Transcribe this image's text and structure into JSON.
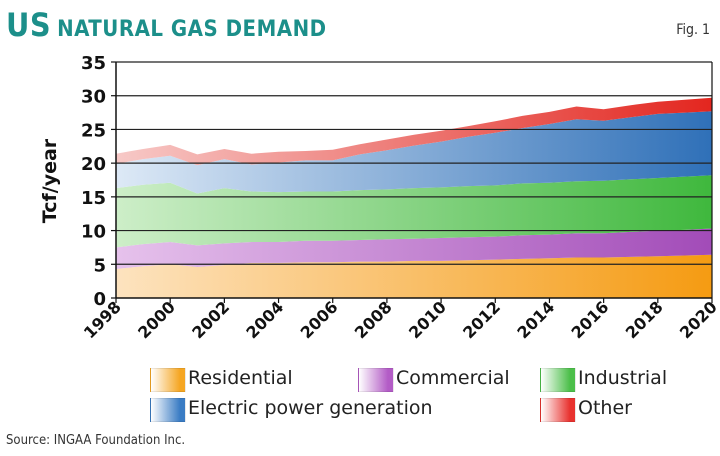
{
  "header": {
    "title_us": "US",
    "title_rest": "NATURAL GAS DEMAND",
    "fig_label": "Fig. 1"
  },
  "source": "Source: INGAA Foundation Inc.",
  "colors": {
    "residential": "#f5a623",
    "commercial": "#b35cc6",
    "industrial": "#4cbf4a",
    "electric": "#3a7cc4",
    "other": "#e8322f",
    "title": "#1c8f8a"
  },
  "chart_data": {
    "type": "area",
    "stacked": true,
    "ylabel": "Tcf/year",
    "xlabel": "",
    "ylim": [
      0,
      35
    ],
    "y_ticks": [
      "0",
      "5",
      "10",
      "15",
      "20",
      "25",
      "30",
      "35"
    ],
    "x_ticks": [
      "1998",
      "2000",
      "2002",
      "2004",
      "2006",
      "2008",
      "2010",
      "2012",
      "2014",
      "2016",
      "2018",
      "2020"
    ],
    "grid": true,
    "legend_position": "bottom",
    "x": [
      1998,
      1999,
      2000,
      2001,
      2002,
      2003,
      2004,
      2005,
      2006,
      2007,
      2008,
      2009,
      2010,
      2011,
      2012,
      2013,
      2014,
      2015,
      2016,
      2017,
      2018,
      2019,
      2020
    ],
    "series": [
      {
        "name": "Residential",
        "key": "residential",
        "values": [
          4.3,
          4.7,
          5.0,
          4.6,
          4.9,
          5.2,
          5.2,
          5.3,
          5.3,
          5.4,
          5.4,
          5.5,
          5.5,
          5.6,
          5.7,
          5.8,
          5.9,
          6.0,
          6.0,
          6.1,
          6.2,
          6.3,
          6.4
        ]
      },
      {
        "name": "Commercial",
        "key": "commercial",
        "values": [
          3.2,
          3.3,
          3.3,
          3.2,
          3.2,
          3.1,
          3.1,
          3.2,
          3.2,
          3.2,
          3.3,
          3.3,
          3.4,
          3.4,
          3.4,
          3.5,
          3.5,
          3.6,
          3.6,
          3.7,
          3.8,
          3.8,
          3.9
        ]
      },
      {
        "name": "Industrial",
        "key": "industrial",
        "values": [
          8.8,
          8.8,
          8.8,
          7.7,
          8.2,
          7.5,
          7.4,
          7.3,
          7.3,
          7.4,
          7.4,
          7.5,
          7.5,
          7.6,
          7.6,
          7.7,
          7.7,
          7.7,
          7.8,
          7.8,
          7.8,
          7.9,
          7.9
        ]
      },
      {
        "name": "Electric power generation",
        "key": "electric",
        "values": [
          3.6,
          3.8,
          4.0,
          4.2,
          4.3,
          4.0,
          4.4,
          4.6,
          4.6,
          5.3,
          5.8,
          6.3,
          6.8,
          7.3,
          7.8,
          8.2,
          8.7,
          9.2,
          8.9,
          9.2,
          9.5,
          9.5,
          9.5
        ]
      },
      {
        "name": "Other",
        "key": "other",
        "values": [
          1.5,
          1.5,
          1.6,
          1.6,
          1.5,
          1.6,
          1.6,
          1.4,
          1.6,
          1.5,
          1.6,
          1.6,
          1.6,
          1.6,
          1.7,
          1.8,
          1.8,
          1.9,
          1.7,
          1.8,
          1.8,
          1.9,
          2.0
        ]
      }
    ],
    "legend": {
      "residential": "Residential",
      "commercial": "Commercial",
      "industrial": "Industrial",
      "electric": "Electric power generation",
      "other": "Other"
    }
  }
}
